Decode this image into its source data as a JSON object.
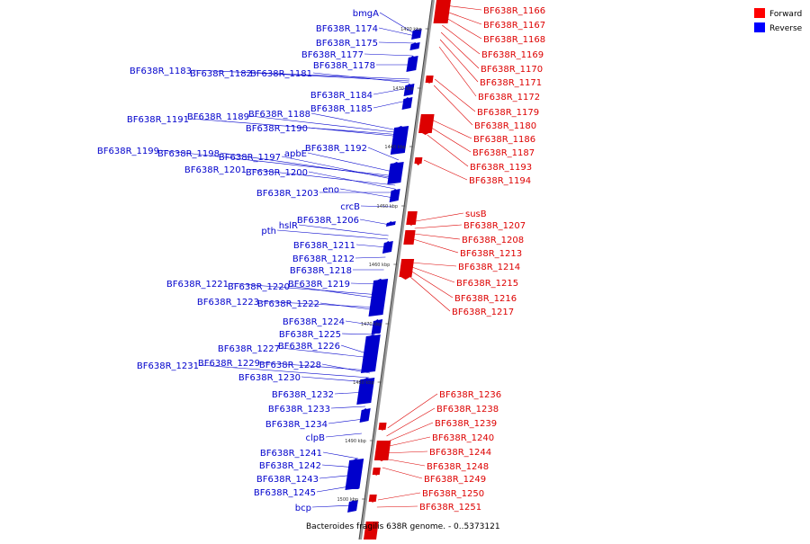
{
  "caption": "Bacteroides fragilis 638R genome. - 0..5373121",
  "legend": [
    {
      "label": "Forward",
      "color": "#ff0000"
    },
    {
      "label": "Reverse",
      "color": "#0000ff"
    }
  ],
  "colors": {
    "forward": "#dd0000",
    "reverse": "#0000cc",
    "axis": "#888888"
  },
  "ticks": [
    "1420 kbp",
    "1430 kbp",
    "1440 kbp",
    "1450 kbp",
    "1460 kbp",
    "1470 kbp",
    "1480 kbp",
    "1490 kbp",
    "1500 kbp"
  ],
  "reverse_labels": [
    "bmgA",
    "BF638R_1174",
    "BF638R_1175",
    "BF638R_1177",
    "BF638R_1178",
    "BF638R_1183",
    "BF638R_1182",
    "BF638R_1181",
    "BF638R_1184",
    "BF638R_1185",
    "BF638R_1191",
    "BF638R_1189",
    "BF638R_1188",
    "BF638R_1190",
    "BF638R_1199",
    "BF638R_1198",
    "BF638R_1197",
    "apbE",
    "BF638R_1192",
    "BF638R_1201",
    "BF638R_1200",
    "BF638R_1203",
    "eno",
    "crcB",
    "BF638R_1206",
    "hslR",
    "pth",
    "BF638R_1211",
    "BF638R_1212",
    "BF638R_1218",
    "BF638R_1221",
    "BF638R_1220",
    "BF638R_1219",
    "BF638R_1223",
    "BF638R_1222",
    "BF638R_1224",
    "BF638R_1225",
    "BF638R_1227",
    "BF638R_1226",
    "BF638R_1231",
    "BF638R_1229",
    "BF638R_1228",
    "BF638R_1230",
    "BF638R_1232",
    "BF638R_1233",
    "BF638R_1234",
    "clpB",
    "BF638R_1241",
    "BF638R_1242",
    "BF638R_1243",
    "BF638R_1245",
    "bcp"
  ],
  "forward_labels": [
    "BF638R_1166",
    "BF638R_1167",
    "BF638R_1168",
    "BF638R_1169",
    "BF638R_1170",
    "BF638R_1171",
    "BF638R_1172",
    "BF638R_1179",
    "BF638R_1180",
    "BF638R_1186",
    "BF638R_1187",
    "BF638R_1193",
    "BF638R_1194",
    "susB",
    "BF638R_1207",
    "BF638R_1208",
    "BF638R_1213",
    "BF638R_1214",
    "BF638R_1215",
    "BF638R_1216",
    "BF638R_1217",
    "BF638R_1236",
    "BF638R_1238",
    "BF638R_1239",
    "BF638R_1240",
    "BF638R_1244",
    "BF638R_1248",
    "BF638R_1249",
    "BF638R_1250",
    "BF638R_1251"
  ]
}
